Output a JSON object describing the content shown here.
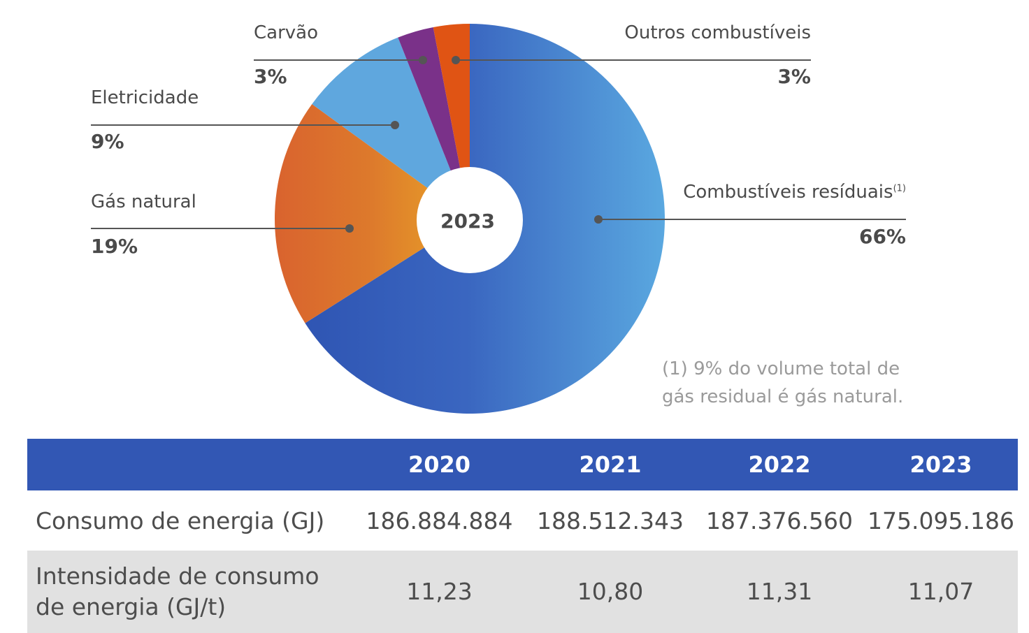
{
  "chart_data": {
    "type": "pie",
    "center_label": "2023",
    "slices": [
      {
        "label": "Combustíveis resíduais",
        "note_marker": "(1)",
        "value": 66,
        "display": "66%",
        "color": "#4a88d4"
      },
      {
        "label": "Gás natural",
        "value": 19,
        "display": "19%",
        "color": "#e07a2e"
      },
      {
        "label": "Eletricidade",
        "value": 9,
        "display": "9%",
        "color": "#5fa7de"
      },
      {
        "label": "Carvão",
        "value": 3,
        "display": "3%",
        "color": "#7a3189"
      },
      {
        "label": "Outros combustíveis",
        "value": 3,
        "display": "3%",
        "color": "#e05414"
      }
    ],
    "footnote": "(1) 9% do volume total de gás residual é gás natural."
  },
  "table": {
    "headers": [
      "",
      "2020",
      "2021",
      "2022",
      "2023"
    ],
    "rows": [
      {
        "label": "Consumo de energia (GJ)",
        "values": [
          "186.884.884",
          "188.512.343",
          "187.376.560",
          "175.095.186"
        ]
      },
      {
        "label": "Intensidade de consumo de energia (GJ/t)",
        "values": [
          "11,23",
          "10,80",
          "11,31",
          "11,07"
        ]
      }
    ]
  },
  "colors": {
    "header_bg": "#3257b4",
    "row_alt_bg": "#e1e1e1",
    "callout_line": "#555555"
  }
}
